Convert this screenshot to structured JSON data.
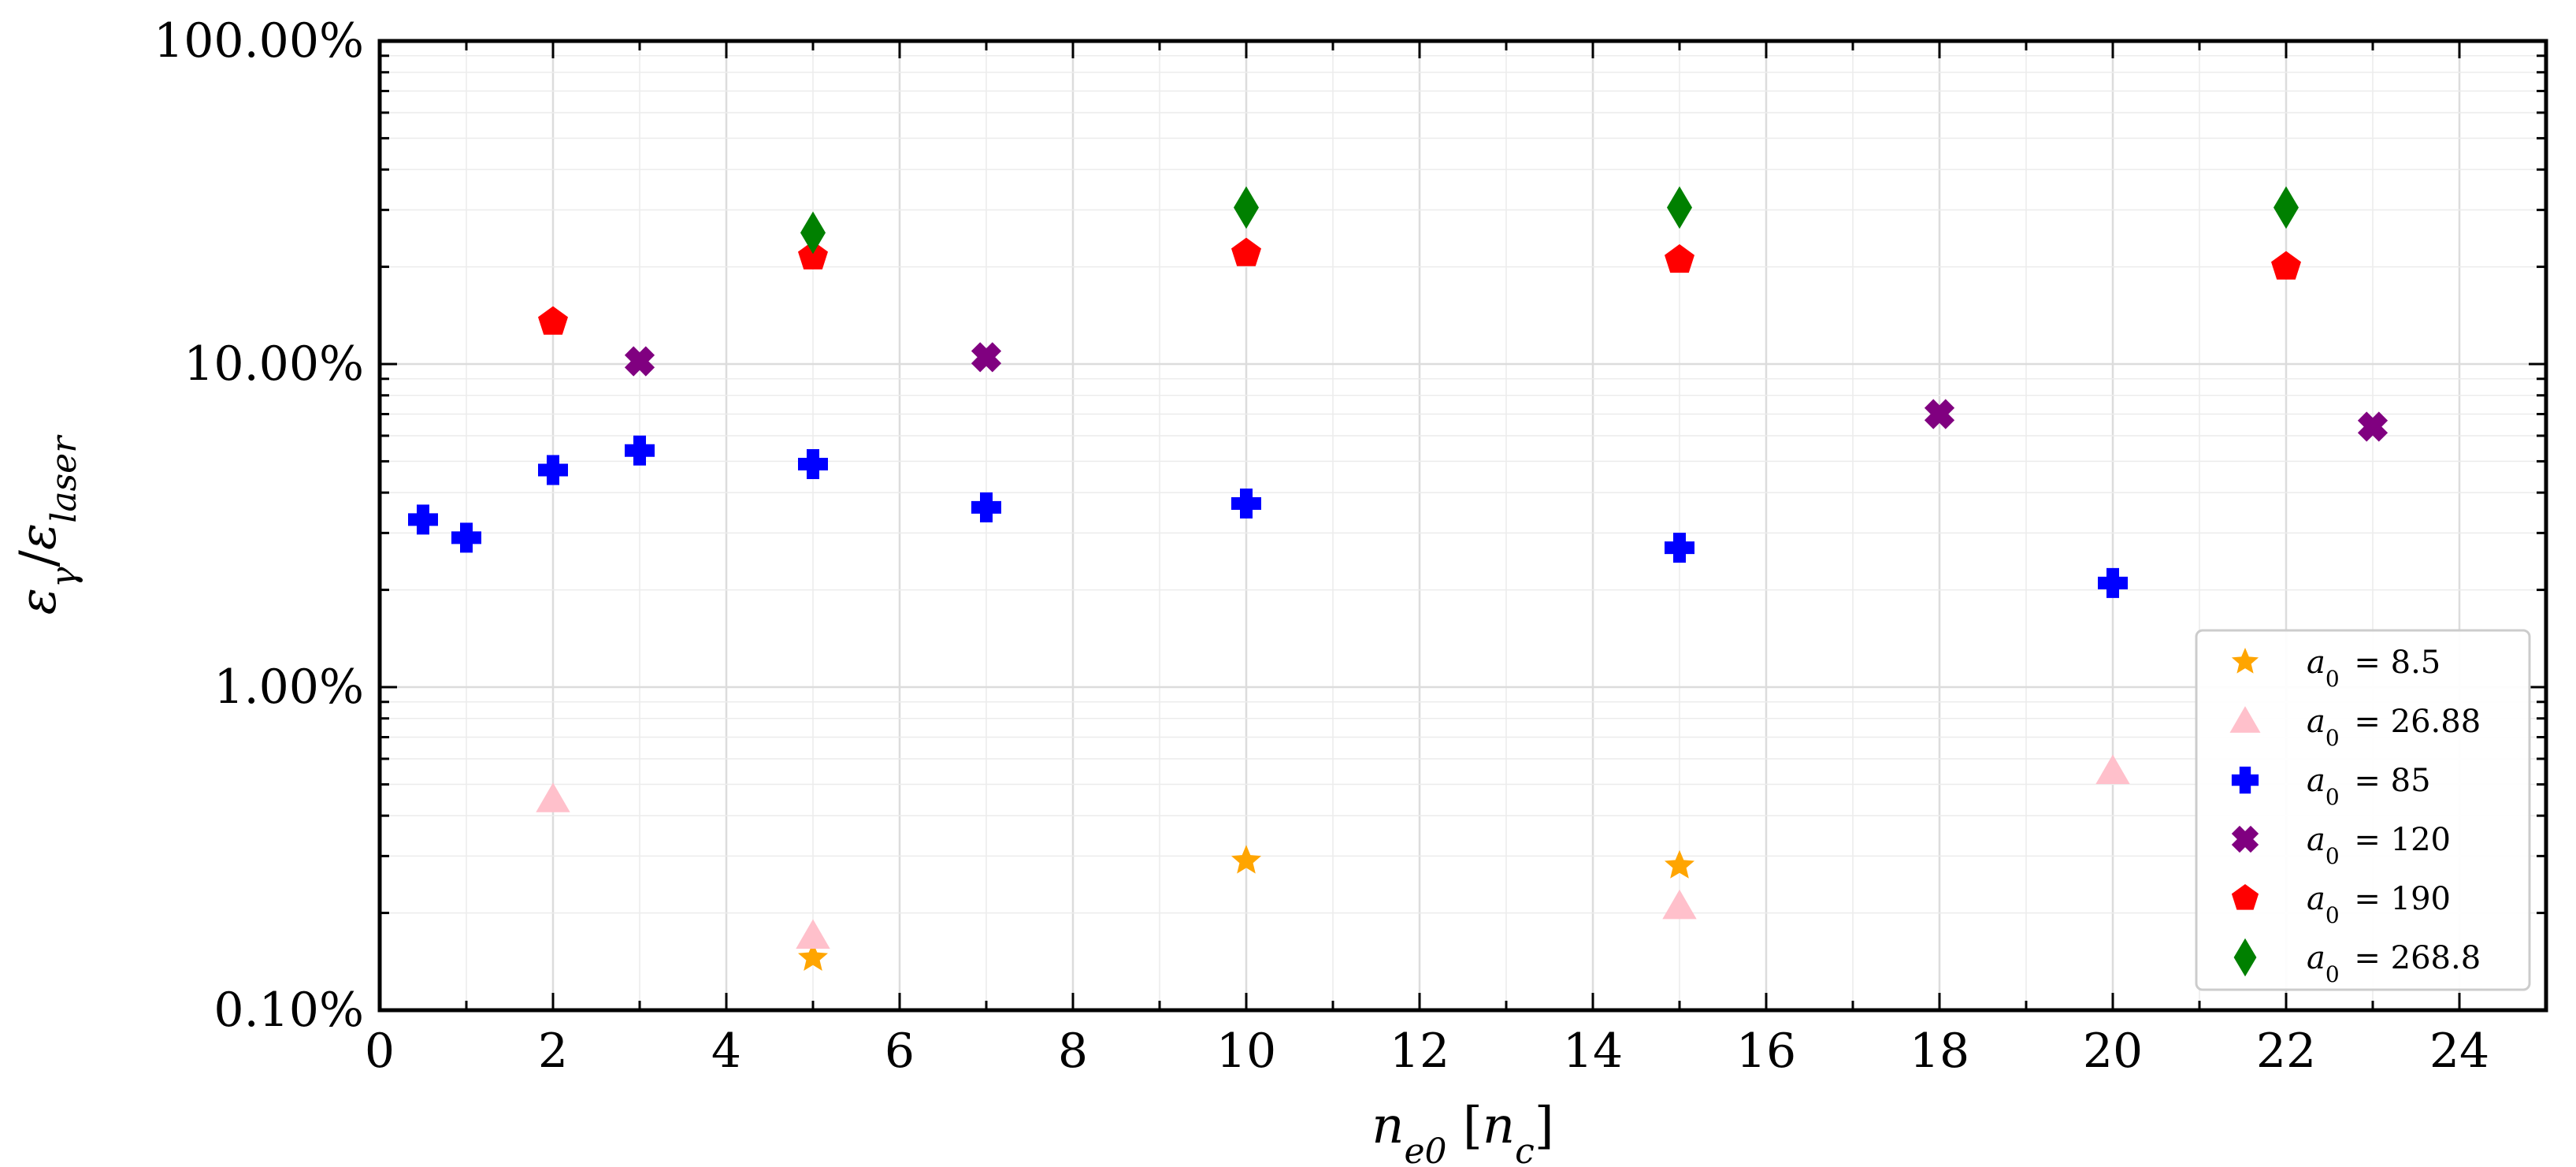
{
  "chart_data": {
    "type": "scatter",
    "title": "",
    "xlabel": "n_e0 [n_c]",
    "ylabel": "ε_γ/ε_laser",
    "x_range": [
      0,
      25
    ],
    "y_range": [
      0.1,
      100
    ],
    "y_scale": "log",
    "grid": true,
    "legend_position": "lower-right",
    "x_ticks": [
      0,
      2,
      4,
      6,
      8,
      10,
      12,
      14,
      16,
      18,
      20,
      22,
      24
    ],
    "x_tick_labels": [
      "0",
      "2",
      "4",
      "6",
      "8",
      "10",
      "12",
      "14",
      "16",
      "18",
      "20",
      "22",
      "24"
    ],
    "y_ticks": [
      0.1,
      1,
      10,
      100
    ],
    "y_tick_labels": [
      "0.10%",
      "1.00%",
      "10.00%",
      "100.00%"
    ],
    "series": [
      {
        "name": "a0=8.5",
        "a0": "8.5",
        "marker": "star",
        "color": "#FFA500",
        "points": [
          [
            5,
            0.145
          ],
          [
            10,
            0.29
          ],
          [
            15,
            0.28
          ]
        ]
      },
      {
        "name": "a0=26.88",
        "a0": "26.88",
        "marker": "triangle",
        "color": "#FFC0CB",
        "points": [
          [
            2,
            0.45
          ],
          [
            5,
            0.17
          ],
          [
            15,
            0.21
          ],
          [
            20,
            0.55
          ]
        ]
      },
      {
        "name": "a0=85",
        "a0": "85",
        "marker": "plus",
        "color": "#0000FF",
        "points": [
          [
            0.5,
            3.3
          ],
          [
            1,
            2.9
          ],
          [
            2,
            4.7
          ],
          [
            3,
            5.4
          ],
          [
            5,
            4.9
          ],
          [
            7,
            3.6
          ],
          [
            10,
            3.7
          ],
          [
            15,
            2.7
          ],
          [
            20,
            2.1
          ]
        ]
      },
      {
        "name": "a0=120",
        "a0": "120",
        "marker": "x",
        "color": "#800080",
        "points": [
          [
            3,
            10.2
          ],
          [
            7,
            10.5
          ],
          [
            18,
            7.0
          ],
          [
            23,
            6.4
          ]
        ]
      },
      {
        "name": "a0=190",
        "a0": "190",
        "marker": "pentagon",
        "color": "#FF0000",
        "points": [
          [
            2,
            13.5
          ],
          [
            5,
            21.5
          ],
          [
            10,
            22.0
          ],
          [
            15,
            21.0
          ],
          [
            22,
            20.0
          ]
        ]
      },
      {
        "name": "a0=268.8",
        "a0": "268.8",
        "marker": "diamond",
        "color": "#008000",
        "points": [
          [
            5,
            25.5
          ],
          [
            10,
            30.5
          ],
          [
            15,
            30.5
          ],
          [
            22,
            30.5
          ]
        ]
      }
    ]
  }
}
